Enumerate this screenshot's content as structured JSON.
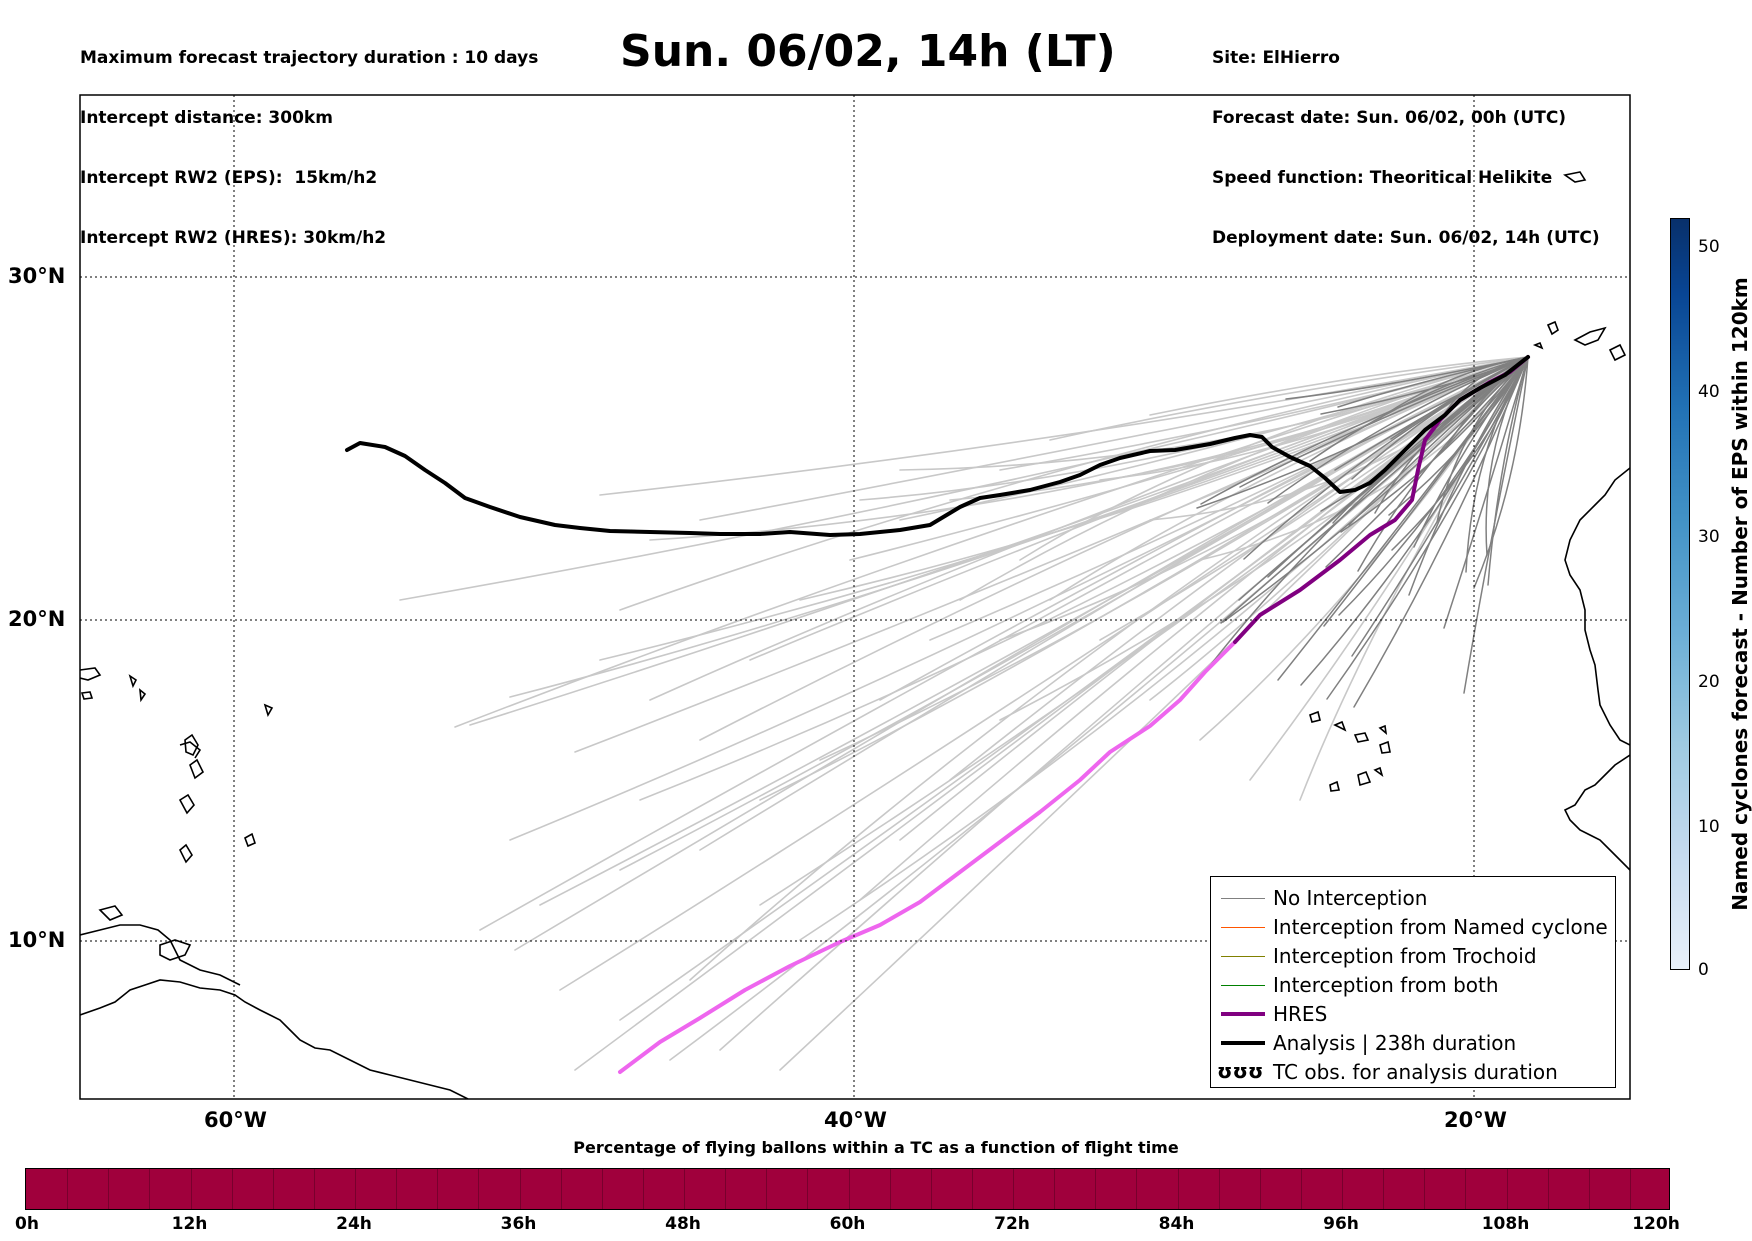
{
  "header": {
    "left_lines": [
      "Maximum forecast trajectory duration : 10 days",
      "Intercept distance: 300km",
      "Intercept RW2 (EPS):  15km/h2",
      "Intercept RW2 (HRES): 30km/h2"
    ],
    "title": "Sun. 06/02, 14h (LT)",
    "right_lines": [
      "Site: ElHierro",
      "Forecast date: Sun. 06/02, 00h (UTC)",
      "Speed function: Theoritical Helikite",
      "Deployment date: Sun. 06/02, 14h (UTC)"
    ]
  },
  "map": {
    "lon_labels": [
      "60°W",
      "40°W",
      "20°W"
    ],
    "lat_labels": [
      "30°N",
      "20°N",
      "10°N"
    ],
    "colors": {
      "no_interception": "#808080",
      "ensemble_far": "#c8c8c8",
      "named_cyclone": "#ff5500",
      "trochoid": "#808000",
      "both": "#008000",
      "hres": "#800080",
      "hres_far": "#ee66ee",
      "analysis": "#000000"
    }
  },
  "legend": {
    "items": [
      {
        "label": "No Interception",
        "color": "#808080",
        "width": 1.5
      },
      {
        "label": "Interception from Named cyclone",
        "color": "#ff5500",
        "width": 1.5
      },
      {
        "label": "Interception from Trochoid",
        "color": "#808000",
        "width": 1.5
      },
      {
        "label": "Interception from both",
        "color": "#008000",
        "width": 1.5
      },
      {
        "label": "HRES",
        "color": "#800080",
        "width": 4
      },
      {
        "label": "Analysis | 238h duration",
        "color": "#000000",
        "width": 4
      }
    ],
    "tc_symbol": "ʊʊʊ",
    "tc_label": "TC obs. for analysis duration"
  },
  "time_colorbar": {
    "title": "Percentage of flying ballons within a TC as a function of flight time",
    "color": "#a0003c",
    "labels": [
      "0h",
      "12h",
      "24h",
      "36h",
      "48h",
      "60h",
      "72h",
      "84h",
      "96h",
      "108h",
      "120h"
    ]
  },
  "eps_colorbar": {
    "title": "Named cyclones forecast - Number of EPS within 120km",
    "labels": [
      "50",
      "40",
      "30",
      "20",
      "10",
      "0"
    ]
  }
}
